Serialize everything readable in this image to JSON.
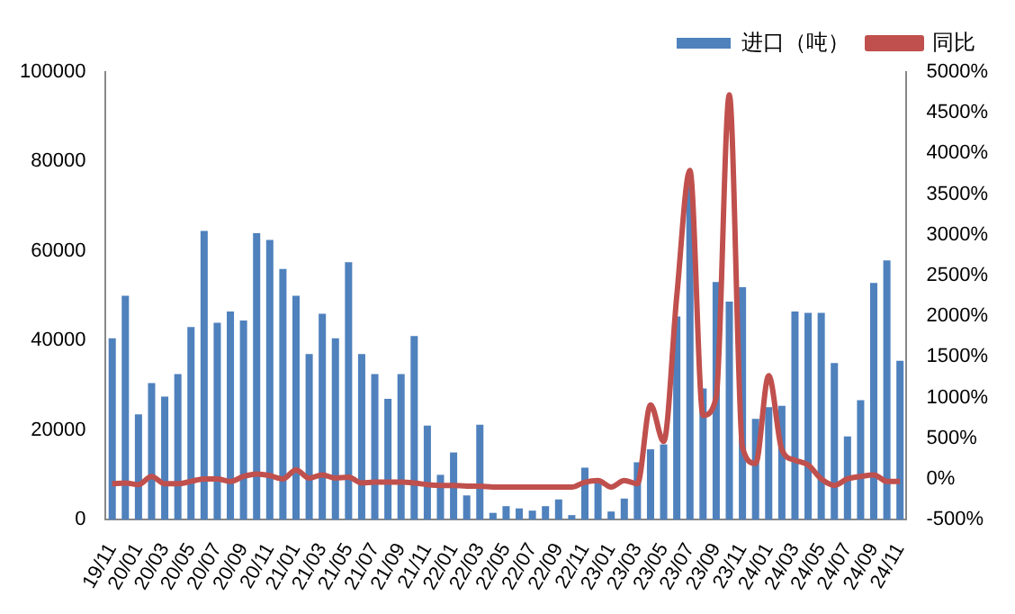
{
  "chart_data": {
    "type": "bar",
    "categories": [
      "19/11",
      null,
      "20/01",
      null,
      "20/03",
      null,
      "20/05",
      null,
      "20/07",
      null,
      "20/09",
      null,
      "20/11",
      null,
      "21/01",
      null,
      "21/03",
      null,
      "21/05",
      null,
      "21/07",
      null,
      "21/09",
      null,
      "21/11",
      null,
      "22/01",
      null,
      "22/03",
      null,
      "22/05",
      null,
      "22/07",
      null,
      "22/09",
      null,
      "22/11",
      null,
      "23/01",
      null,
      "23/03",
      null,
      "23/05",
      null,
      "23/07",
      null,
      "23/09",
      null,
      "23/11",
      null,
      "24/01",
      null,
      "24/03",
      null,
      "24/05",
      null,
      "24/07",
      null,
      "24/09",
      null,
      "24/11"
    ],
    "series": [
      {
        "name": "进口（吨）",
        "color": "#4f81bd",
        "values": [
          40500,
          50000,
          23500,
          30500,
          27500,
          32500,
          43000,
          64500,
          44000,
          46500,
          44500,
          64000,
          62500,
          56000,
          50000,
          37000,
          46000,
          40500,
          57500,
          37000,
          32500,
          27000,
          32500,
          41000,
          21000,
          10000,
          15000,
          5400,
          21200,
          1500,
          3000,
          2500,
          2000,
          3000,
          4500,
          1000,
          11600,
          8300,
          1800,
          4700,
          12800,
          15700,
          16800,
          45400,
          74600,
          29300,
          53100,
          48700,
          51900,
          22500,
          25100,
          25400,
          46500,
          46200,
          46200,
          35000,
          18600,
          26700,
          52900,
          57900,
          35500
        ]
      },
      {
        "name": "同比",
        "type": "line",
        "axis": "y2",
        "color": "#c0504d",
        "values": [
          -60,
          -50,
          -70,
          30,
          -60,
          -60,
          -30,
          0,
          0,
          -30,
          30,
          60,
          40,
          0,
          110,
          10,
          50,
          10,
          20,
          -50,
          -40,
          -40,
          -40,
          -50,
          -70,
          -80,
          -80,
          -90,
          -90,
          -100,
          -100,
          -100,
          -100,
          -100,
          -100,
          -100,
          -40,
          -20,
          -100,
          -20,
          -60,
          910,
          460,
          2250,
          3790,
          780,
          1000,
          4720,
          390,
          190,
          1270,
          360,
          230,
          170,
          0,
          -80,
          0,
          30,
          50,
          -30,
          -30
        ]
      }
    ],
    "ylim": [
      0,
      100000
    ],
    "yticks": [
      0,
      20000,
      40000,
      60000,
      80000,
      100000
    ],
    "y2lim": [
      -500,
      5000
    ],
    "y2ticks": [
      {
        "value": -500,
        "label": "-500%"
      },
      {
        "value": 0,
        "label": "0%"
      },
      {
        "value": 500,
        "label": "500%"
      },
      {
        "value": 1000,
        "label": "1000%"
      },
      {
        "value": 1500,
        "label": "1500%"
      },
      {
        "value": 2000,
        "label": "2000%"
      },
      {
        "value": 2500,
        "label": "2500%"
      },
      {
        "value": 3000,
        "label": "3000%"
      },
      {
        "value": 3500,
        "label": "3500%"
      },
      {
        "value": 4000,
        "label": "4000%"
      },
      {
        "value": 4500,
        "label": "4500%"
      },
      {
        "value": 5000,
        "label": "5000%"
      }
    ],
    "legend": "top right",
    "grid": false
  }
}
